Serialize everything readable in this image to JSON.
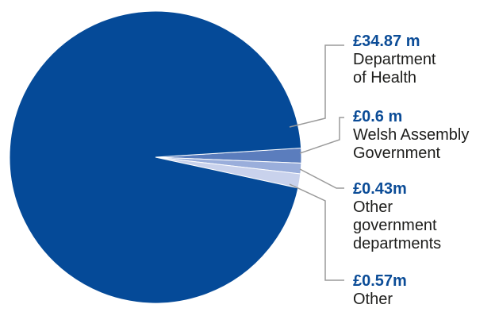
{
  "chart_data": {
    "type": "pie",
    "title": "",
    "slices": [
      {
        "value_label": "£34.87 m",
        "name_lines": [
          "Department",
          "of Health"
        ],
        "value": 34.87,
        "color": "#054a98"
      },
      {
        "value_label": "£0.6 m",
        "name_lines": [
          "Welsh Assembly",
          "Government"
        ],
        "value": 0.6,
        "color": "#5b7dbd"
      },
      {
        "value_label": "£0.43m",
        "name_lines": [
          "Other",
          "government",
          "departments"
        ],
        "value": 0.43,
        "color": "#9aaedb"
      },
      {
        "value_label": "£0.57m",
        "name_lines": [
          "Other"
        ],
        "value": 0.57,
        "color": "#c9d2ec"
      }
    ],
    "units": "£ million"
  },
  "colors": {
    "value_text": "#0b4c97",
    "leader_line": "#9a9a9a"
  }
}
